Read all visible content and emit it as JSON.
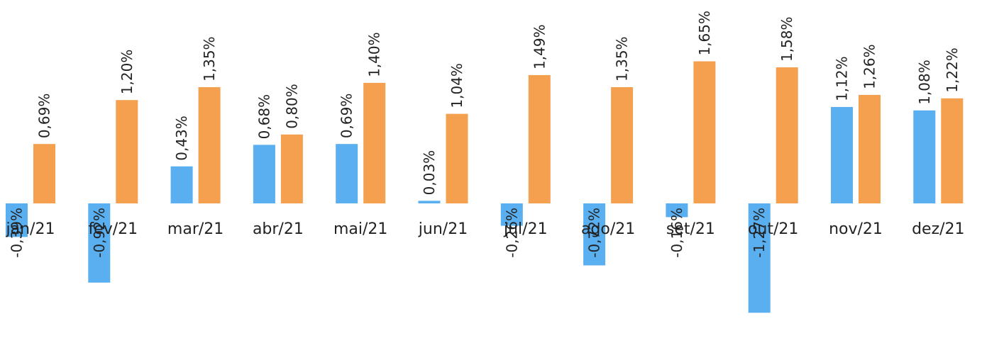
{
  "chart_data": {
    "type": "bar",
    "categories": [
      "jan/21",
      "fev/21",
      "mar/21",
      "abr/21",
      "mai/21",
      "jun/21",
      "jul/21",
      "ago/21",
      "set/21",
      "out/21",
      "nov/21",
      "dez/21"
    ],
    "series": [
      {
        "color": "#5aaff0",
        "values": [
          -0.39,
          -0.92,
          0.43,
          0.68,
          0.69,
          0.03,
          -0.26,
          -0.72,
          -0.16,
          -1.27,
          1.12,
          1.08
        ],
        "labels": [
          "-0,39%",
          "-0,92%",
          "0,43%",
          "0,68%",
          "0,69%",
          "0,03%",
          "-0,26%",
          "-0,72%",
          "-0,16%",
          "-1,27%",
          "1,12%",
          "1,08%"
        ]
      },
      {
        "color": "#f5a04e",
        "values": [
          0.69,
          1.2,
          1.35,
          0.8,
          1.4,
          1.04,
          1.49,
          1.35,
          1.65,
          1.58,
          1.26,
          1.22
        ],
        "labels": [
          "0,69%",
          "1,20%",
          "1,35%",
          "0,80%",
          "1,40%",
          "1,04%",
          "1,49%",
          "1,35%",
          "1,65%",
          "1,58%",
          "1,26%",
          "1,22%"
        ]
      }
    ],
    "title": "",
    "xlabel": "",
    "ylabel": "",
    "grid": false,
    "legend": "none",
    "ylim": [
      -1.27,
      1.65
    ]
  }
}
